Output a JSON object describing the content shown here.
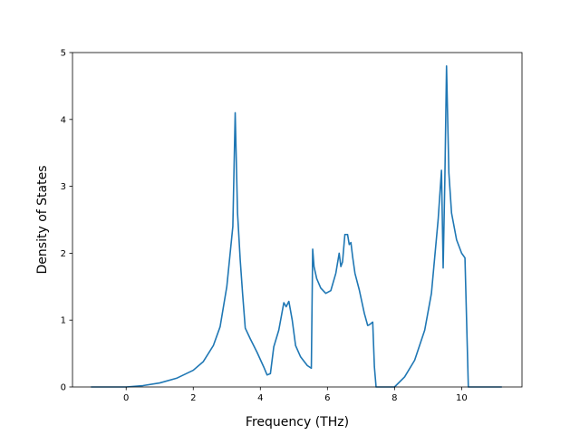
{
  "chart_data": {
    "type": "line",
    "title": "",
    "xlabel": "Frequency (THz)",
    "ylabel": "Density of States",
    "xlim": [
      -1.6,
      11.8
    ],
    "ylim": [
      0,
      5.0
    ],
    "grid": false,
    "xticks": [
      {
        "value": 0,
        "label": "0"
      },
      {
        "value": 2,
        "label": "2"
      },
      {
        "value": 4,
        "label": "4"
      },
      {
        "value": 6,
        "label": "6"
      },
      {
        "value": 8,
        "label": "8"
      },
      {
        "value": 10,
        "label": "10"
      }
    ],
    "yticks": [
      {
        "value": 0,
        "label": "0"
      },
      {
        "value": 1,
        "label": "1"
      },
      {
        "value": 2,
        "label": "2"
      },
      {
        "value": 3,
        "label": "3"
      },
      {
        "value": 4,
        "label": "4"
      },
      {
        "value": 5,
        "label": "5"
      }
    ],
    "color": "#1f77b4",
    "series": [
      {
        "x": [
          -1.05,
          0.0,
          0.5,
          1.0,
          1.5,
          2.0,
          2.3,
          2.6,
          2.8,
          3.0,
          3.1,
          3.18,
          3.25,
          3.32,
          3.4,
          3.47,
          3.55,
          3.7,
          3.9,
          4.1,
          4.2,
          4.3,
          4.4,
          4.55,
          4.7,
          4.77,
          4.85,
          4.95,
          5.05,
          5.2,
          5.4,
          5.52,
          5.56,
          5.6,
          5.68,
          5.8,
          5.95,
          6.1,
          6.25,
          6.35,
          6.4,
          6.45,
          6.52,
          6.6,
          6.65,
          6.7,
          6.75,
          6.82,
          6.95,
          7.1,
          7.2,
          7.25,
          7.35,
          7.4,
          7.45,
          7.6,
          8.0,
          8.3,
          8.6,
          8.9,
          9.1,
          9.3,
          9.4,
          9.45,
          9.5,
          9.55,
          9.62,
          9.7,
          9.85,
          10.0,
          10.1,
          10.2,
          10.3,
          11.2
        ],
        "y": [
          0,
          0,
          0.02,
          0.06,
          0.13,
          0.25,
          0.38,
          0.62,
          0.9,
          1.5,
          2.0,
          2.4,
          4.1,
          2.6,
          1.9,
          1.4,
          0.88,
          0.72,
          0.52,
          0.3,
          0.18,
          0.2,
          0.6,
          0.85,
          1.26,
          1.2,
          1.28,
          1.0,
          0.62,
          0.45,
          0.32,
          0.28,
          2.06,
          1.8,
          1.62,
          1.48,
          1.4,
          1.44,
          1.7,
          2.0,
          1.8,
          1.87,
          2.28,
          2.28,
          2.13,
          2.16,
          1.95,
          1.7,
          1.45,
          1.1,
          0.92,
          0.93,
          0.97,
          0.3,
          0.0,
          0.0,
          0.0,
          0.15,
          0.4,
          0.85,
          1.4,
          2.5,
          3.24,
          1.78,
          3.1,
          4.8,
          3.2,
          2.6,
          2.2,
          2.0,
          1.93,
          0.0,
          0.0,
          0.0
        ]
      }
    ]
  }
}
